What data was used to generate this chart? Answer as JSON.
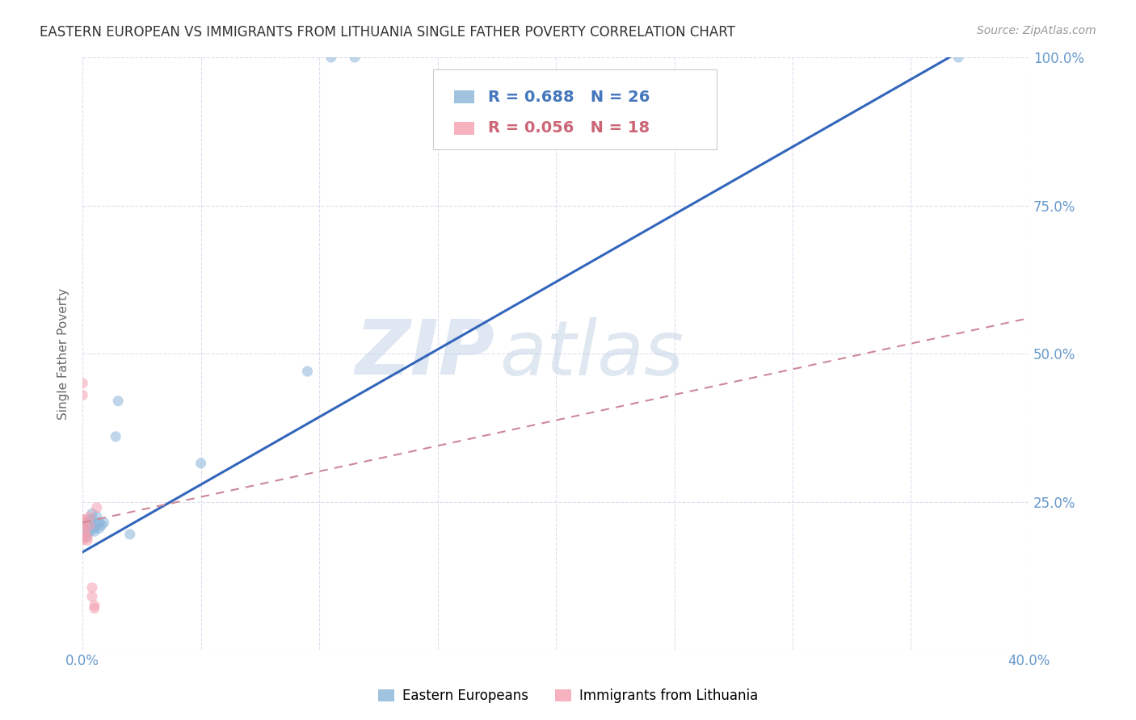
{
  "title": "EASTERN EUROPEAN VS IMMIGRANTS FROM LITHUANIA SINGLE FATHER POVERTY CORRELATION CHART",
  "source": "Source: ZipAtlas.com",
  "ylabel": "Single Father Poverty",
  "xlim": [
    0.0,
    0.4
  ],
  "ylim": [
    0.0,
    1.0
  ],
  "xticks": [
    0.0,
    0.05,
    0.1,
    0.15,
    0.2,
    0.25,
    0.3,
    0.35,
    0.4
  ],
  "xtick_labels": [
    "0.0%",
    "",
    "",
    "",
    "",
    "",
    "",
    "",
    "40.0%"
  ],
  "yticks": [
    0.0,
    0.25,
    0.5,
    0.75,
    1.0
  ],
  "ytick_labels": [
    "",
    "25.0%",
    "50.0%",
    "75.0%",
    "100.0%"
  ],
  "watermark_zip": "ZIP",
  "watermark_atlas": "atlas",
  "blue_color": "#89B4D9",
  "pink_color": "#F4A0B0",
  "line_blue_color": "#3366BB",
  "line_pink_color": "#CC8899",
  "legend_text_color": "#4477BB",
  "legend_pink_text_color": "#CC6677",
  "blue_x": [
    0.001,
    0.001,
    0.001,
    0.002,
    0.002,
    0.003,
    0.003,
    0.003,
    0.004,
    0.004,
    0.005,
    0.005,
    0.005,
    0.006,
    0.007,
    0.007,
    0.008,
    0.009,
    0.014,
    0.015,
    0.02,
    0.05,
    0.095,
    0.105,
    0.115,
    0.37
  ],
  "blue_y": [
    0.205,
    0.19,
    0.215,
    0.21,
    0.195,
    0.2,
    0.215,
    0.22,
    0.23,
    0.22,
    0.2,
    0.205,
    0.21,
    0.225,
    0.205,
    0.215,
    0.21,
    0.215,
    0.36,
    0.42,
    0.195,
    0.315,
    0.47,
    1.0,
    1.0,
    1.0
  ],
  "pink_x": [
    0.001,
    0.001,
    0.001,
    0.001,
    0.002,
    0.002,
    0.003,
    0.003,
    0.004,
    0.004,
    0.005,
    0.005,
    0.006,
    0.0,
    0.0,
    0.0,
    0.0,
    0.0
  ],
  "pink_y": [
    0.2,
    0.21,
    0.22,
    0.195,
    0.185,
    0.19,
    0.225,
    0.21,
    0.105,
    0.09,
    0.07,
    0.075,
    0.24,
    0.43,
    0.45,
    0.215,
    0.22,
    0.185
  ],
  "blue_line_x0": 0.0,
  "blue_line_y0": 0.165,
  "blue_line_x1": 0.375,
  "blue_line_y1": 1.02,
  "pink_line_x0": 0.0,
  "pink_line_y0": 0.215,
  "pink_line_x1": 0.4,
  "pink_line_y1": 0.56,
  "grid_color": "#DDDDEE",
  "bg_color": "#FFFFFF",
  "title_color": "#333333",
  "axis_label_color": "#6699CC",
  "marker_size": 90,
  "marker_alpha": 0.55,
  "title_fontsize": 12,
  "source_fontsize": 10,
  "tick_fontsize": 12,
  "ylabel_fontsize": 11
}
